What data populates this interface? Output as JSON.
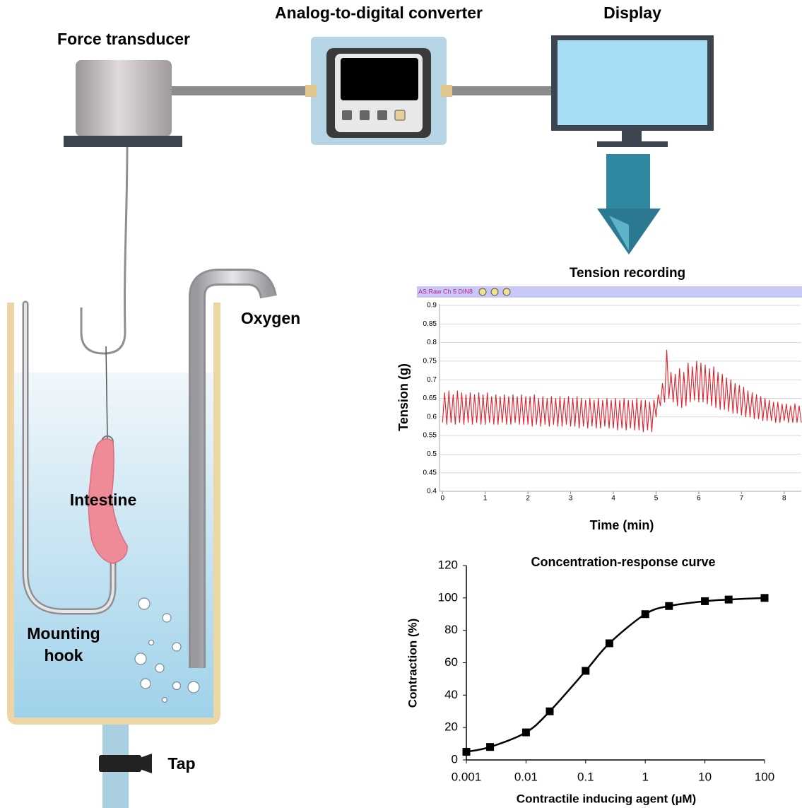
{
  "labels": {
    "force_transducer": "Force transducer",
    "converter": "Analog-to-digital converter",
    "display": "Display",
    "oxygen": "Oxygen",
    "intestine": "Intestine",
    "mounting_hook": [
      "Mounting",
      "hook"
    ],
    "tap": "Tap"
  },
  "chart_data": [
    {
      "type": "line",
      "title": "Tension recording",
      "toolbar": "AS:Raw Ch 5 DIN8",
      "x_label": "Time (min)",
      "y_label": "Tension (g)",
      "color": "#e0202a",
      "grid": true,
      "xlim": [
        -0.07,
        8.4
      ],
      "ylim": [
        0.4,
        0.9
      ],
      "xticks": [
        0,
        1,
        2,
        3,
        4,
        5,
        6,
        7,
        8
      ],
      "yticks": [
        0.4,
        0.45,
        0.5,
        0.55,
        0.6,
        0.65,
        0.7,
        0.75,
        0.8,
        0.85,
        0.9
      ],
      "x": [
        0,
        0.05,
        0.1,
        0.15,
        0.2,
        0.25,
        0.3,
        0.35,
        0.4,
        0.45,
        0.5,
        0.55,
        0.6,
        0.65,
        0.7,
        0.75,
        0.8,
        0.85,
        0.9,
        0.95,
        1,
        1.05,
        1.1,
        1.15,
        1.2,
        1.25,
        1.3,
        1.35,
        1.4,
        1.45,
        1.5,
        1.55,
        1.6,
        1.65,
        1.7,
        1.75,
        1.8,
        1.85,
        1.9,
        1.95,
        2,
        2.05,
        2.1,
        2.15,
        2.2,
        2.25,
        2.3,
        2.35,
        2.4,
        2.45,
        2.5,
        2.55,
        2.6,
        2.65,
        2.7,
        2.75,
        2.8,
        2.85,
        2.9,
        2.95,
        3,
        3.05,
        3.1,
        3.15,
        3.2,
        3.25,
        3.3,
        3.35,
        3.4,
        3.45,
        3.5,
        3.55,
        3.6,
        3.65,
        3.7,
        3.75,
        3.8,
        3.85,
        3.9,
        3.95,
        4,
        4.05,
        4.1,
        4.15,
        4.2,
        4.25,
        4.3,
        4.35,
        4.4,
        4.45,
        4.5,
        4.55,
        4.6,
        4.65,
        4.7,
        4.75,
        4.8,
        4.85,
        4.9,
        4.95,
        5,
        5.05,
        5.1,
        5.15,
        5.2,
        5.25,
        5.3,
        5.35,
        5.4,
        5.45,
        5.5,
        5.55,
        5.6,
        5.65,
        5.7,
        5.75,
        5.8,
        5.85,
        5.9,
        5.95,
        6,
        6.05,
        6.1,
        6.15,
        6.2,
        6.25,
        6.3,
        6.35,
        6.4,
        6.45,
        6.5,
        6.55,
        6.6,
        6.65,
        6.7,
        6.75,
        6.8,
        6.85,
        6.9,
        6.95,
        7,
        7.05,
        7.1,
        7.15,
        7.2,
        7.25,
        7.3,
        7.35,
        7.4,
        7.45,
        7.5,
        7.55,
        7.6,
        7.65,
        7.7,
        7.75,
        7.8,
        7.85,
        7.9,
        7.95,
        8,
        8.05,
        8.1,
        8.15,
        8.2,
        8.25,
        8.3,
        8.35,
        8.4
      ],
      "values": [
        0.585,
        0.665,
        0.58,
        0.67,
        0.585,
        0.66,
        0.58,
        0.67,
        0.585,
        0.665,
        0.58,
        0.66,
        0.585,
        0.665,
        0.58,
        0.66,
        0.585,
        0.665,
        0.58,
        0.66,
        0.58,
        0.665,
        0.585,
        0.655,
        0.58,
        0.66,
        0.58,
        0.655,
        0.585,
        0.66,
        0.58,
        0.655,
        0.58,
        0.66,
        0.585,
        0.655,
        0.58,
        0.66,
        0.58,
        0.655,
        0.58,
        0.655,
        0.575,
        0.66,
        0.58,
        0.65,
        0.575,
        0.655,
        0.58,
        0.65,
        0.575,
        0.655,
        0.58,
        0.65,
        0.575,
        0.655,
        0.575,
        0.65,
        0.58,
        0.655,
        0.575,
        0.65,
        0.575,
        0.655,
        0.57,
        0.65,
        0.575,
        0.645,
        0.57,
        0.65,
        0.575,
        0.645,
        0.57,
        0.65,
        0.57,
        0.645,
        0.575,
        0.65,
        0.57,
        0.645,
        0.57,
        0.65,
        0.565,
        0.645,
        0.57,
        0.65,
        0.565,
        0.645,
        0.57,
        0.645,
        0.565,
        0.65,
        0.565,
        0.645,
        0.56,
        0.645,
        0.565,
        0.64,
        0.56,
        0.645,
        0.6,
        0.66,
        0.63,
        0.69,
        0.64,
        0.78,
        0.65,
        0.72,
        0.64,
        0.715,
        0.63,
        0.73,
        0.625,
        0.72,
        0.63,
        0.745,
        0.64,
        0.735,
        0.645,
        0.75,
        0.64,
        0.745,
        0.64,
        0.74,
        0.635,
        0.73,
        0.63,
        0.735,
        0.625,
        0.72,
        0.62,
        0.715,
        0.62,
        0.705,
        0.615,
        0.7,
        0.61,
        0.69,
        0.61,
        0.685,
        0.605,
        0.68,
        0.6,
        0.67,
        0.6,
        0.665,
        0.595,
        0.66,
        0.595,
        0.655,
        0.59,
        0.65,
        0.59,
        0.645,
        0.59,
        0.64,
        0.585,
        0.64,
        0.585,
        0.635,
        0.59,
        0.635,
        0.585,
        0.63,
        0.585,
        0.635,
        0.585,
        0.63,
        0.585
      ]
    },
    {
      "type": "line",
      "markers": "square",
      "title": "Concentration-response curve",
      "x_label": "Contractile inducing agent (µM)",
      "y_label": "Contraction (%)",
      "color": "#000000",
      "xscale": "log",
      "grid": false,
      "xlim": [
        0.001,
        100
      ],
      "ylim": [
        0,
        120
      ],
      "xticks": [
        0.001,
        0.01,
        0.1,
        1,
        10,
        100
      ],
      "yticks": [
        0,
        20,
        40,
        60,
        80,
        100,
        120
      ],
      "x": [
        0.001,
        0.0025,
        0.01,
        0.025,
        0.1,
        0.25,
        1,
        2.5,
        10,
        25,
        100
      ],
      "values": [
        5,
        8,
        17,
        30,
        55,
        72,
        90,
        95,
        98,
        99,
        100
      ]
    }
  ]
}
